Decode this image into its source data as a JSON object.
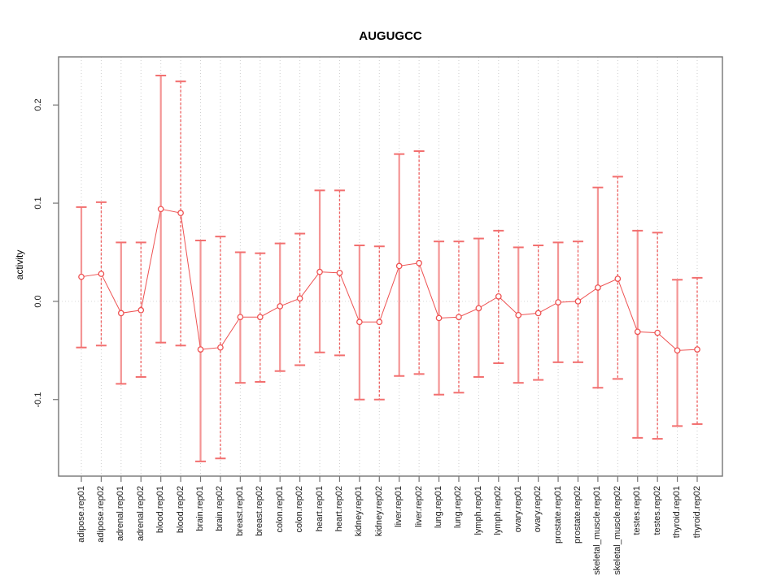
{
  "chart_data": {
    "type": "line",
    "title": "AUGUGCC",
    "xlabel": "",
    "ylabel": "activity",
    "categories": [
      "adipose.rep01",
      "adipose.rep02",
      "adrenal.rep01",
      "adrenal.rep02",
      "blood.rep01",
      "blood.rep02",
      "brain.rep01",
      "brain.rep02",
      "breast.rep01",
      "breast.rep02",
      "colon.rep01",
      "colon.rep02",
      "heart.rep01",
      "heart.rep02",
      "kidney.rep01",
      "kidney.rep02",
      "liver.rep01",
      "liver.rep02",
      "lung.rep01",
      "lung.rep02",
      "lymph.rep01",
      "lymph.rep02",
      "ovary.rep01",
      "ovary.rep02",
      "prostate.rep01",
      "prostate.rep02",
      "skeletal_muscle.rep01",
      "skeletal_muscle.rep02",
      "testes.rep01",
      "testes.rep02",
      "thyroid.rep01",
      "thyroid.rep02"
    ],
    "series": [
      {
        "name": "activity",
        "values": [
          0.025,
          0.028,
          -0.012,
          -0.009,
          0.094,
          0.09,
          -0.049,
          -0.047,
          -0.016,
          -0.016,
          -0.005,
          0.003,
          0.03,
          0.029,
          -0.021,
          -0.021,
          0.036,
          0.039,
          -0.017,
          -0.016,
          -0.007,
          0.005,
          -0.014,
          -0.012,
          -0.001,
          0.0,
          0.014,
          0.023,
          -0.031,
          -0.032,
          -0.05,
          -0.049
        ],
        "error_high": [
          0.096,
          0.101,
          0.06,
          0.06,
          0.23,
          0.224,
          0.062,
          0.066,
          0.05,
          0.049,
          0.059,
          0.069,
          0.113,
          0.113,
          0.057,
          0.056,
          0.15,
          0.153,
          0.061,
          0.061,
          0.064,
          0.072,
          0.055,
          0.057,
          0.06,
          0.061,
          0.116,
          0.127,
          0.072,
          0.07,
          0.022,
          0.024
        ],
        "error_low": [
          -0.047,
          -0.045,
          -0.084,
          -0.077,
          -0.042,
          -0.045,
          -0.163,
          -0.16,
          -0.083,
          -0.082,
          -0.071,
          -0.065,
          -0.052,
          -0.055,
          -0.1,
          -0.1,
          -0.076,
          -0.074,
          -0.095,
          -0.093,
          -0.077,
          -0.063,
          -0.083,
          -0.08,
          -0.062,
          -0.062,
          -0.088,
          -0.079,
          -0.139,
          -0.14,
          -0.127,
          -0.125
        ]
      }
    ],
    "yticks": [
      -0.1,
      0.0,
      0.1,
      0.2
    ],
    "ytick_labels": [
      "-0.1",
      "0.0",
      "0.1",
      "0.2"
    ],
    "ylim": [
      -0.178,
      0.249
    ],
    "grid": "vertical dotted line per category; dotted horizontal line at 0",
    "legend": "none",
    "marker": "open-circle",
    "colors": {
      "point": "#ee5252",
      "line": "#ee5252",
      "error_bar_light": "#f49595",
      "error_bar_dark": "#ed5e5e",
      "error_cap": "#f26f6f",
      "grid": "#cdcdcd",
      "zero_line": "#d8d8d8",
      "axis": "#757575",
      "text": "#000000"
    }
  }
}
